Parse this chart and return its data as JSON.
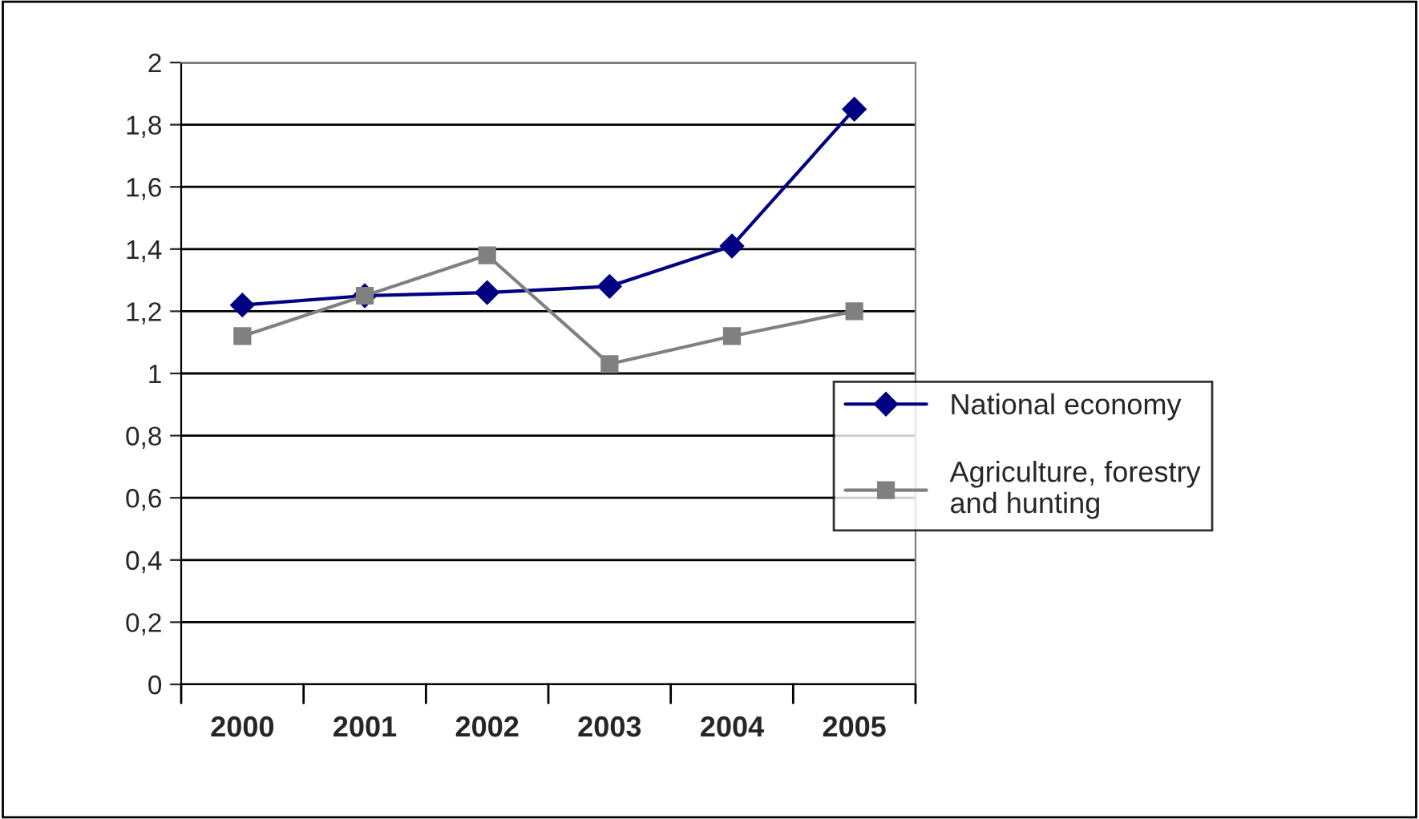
{
  "chart_data": {
    "type": "line",
    "categories": [
      "2000",
      "2001",
      "2002",
      "2003",
      "2004",
      "2005"
    ],
    "series": [
      {
        "name": "National economy",
        "color": "#000080",
        "marker": "diamond",
        "values": [
          1.22,
          1.25,
          1.26,
          1.28,
          1.41,
          1.85
        ]
      },
      {
        "name": "Agriculture, forestry and hunting",
        "color": "#808080",
        "marker": "square",
        "values": [
          1.12,
          1.25,
          1.38,
          1.03,
          1.12,
          1.2
        ]
      }
    ],
    "ylim": [
      0,
      2
    ],
    "yticks": [
      0,
      {
        "value": 0.2,
        "label": "0,2"
      },
      {
        "value": 0.4,
        "label": "0,4"
      },
      {
        "value": 0.6,
        "label": "0,6"
      },
      {
        "value": 0.8,
        "label": "0,8"
      },
      1,
      {
        "value": 1.2,
        "label": "1,2"
      },
      {
        "value": 1.4,
        "label": "1,4"
      },
      {
        "value": 1.6,
        "label": "1,6"
      },
      {
        "value": 1.8,
        "label": "1,8"
      },
      2
    ],
    "grid": "y",
    "legend": "right",
    "line_style": "solid"
  }
}
